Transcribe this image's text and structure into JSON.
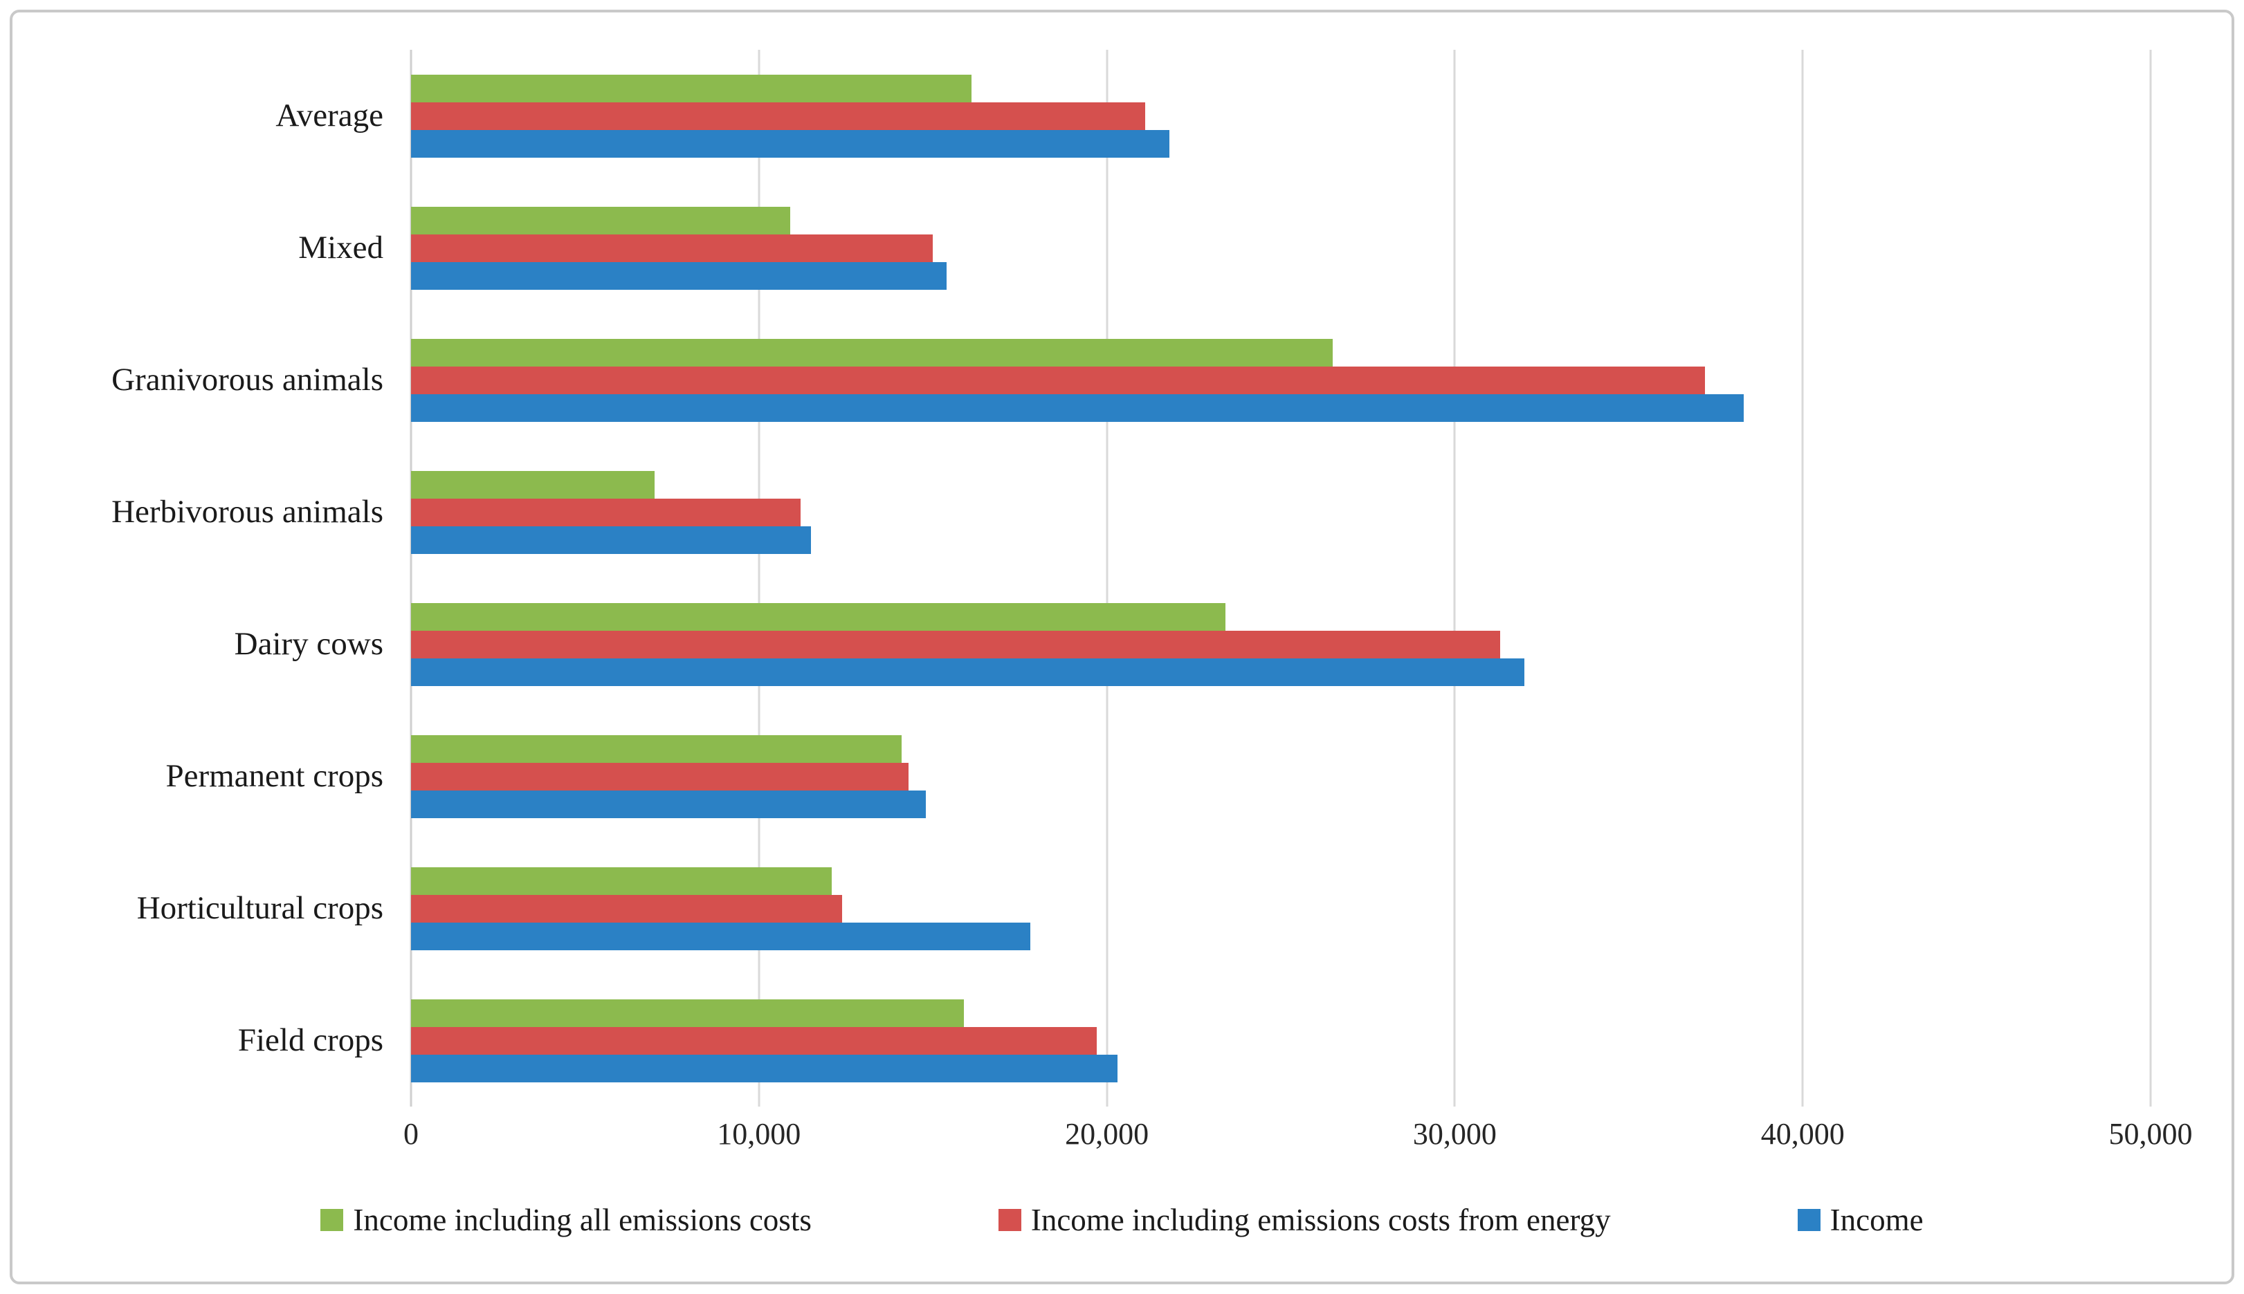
{
  "figure": {
    "background": "#ffffff",
    "frame_border_color": "#c9c9c9"
  },
  "chart_data": {
    "type": "bar",
    "orientation": "horizontal",
    "title": "",
    "xlabel": "",
    "ylabel": "",
    "categories_top_to_bottom": [
      "Average",
      "Mixed",
      "Granivorous animals",
      "Herbivorous animals",
      "Dairy cows",
      "Permanent crops",
      "Horticultural crops",
      "Field crops"
    ],
    "series": [
      {
        "name": "Income including all emissions costs",
        "color": "#8cba4e",
        "values": [
          16100,
          10900,
          26500,
          7000,
          23400,
          14100,
          12100,
          15900
        ]
      },
      {
        "name": "Income including emissions costs from energy",
        "color": "#d5504e",
        "values": [
          21100,
          15000,
          37200,
          11200,
          31300,
          14300,
          12400,
          19700
        ]
      },
      {
        "name": "Income",
        "color": "#2b81c5",
        "values": [
          21800,
          15400,
          38300,
          11500,
          32000,
          14800,
          17800,
          20300
        ]
      }
    ],
    "xlim": [
      0,
      50000
    ],
    "x_ticks": [
      {
        "value": 0,
        "label": "0"
      },
      {
        "value": 10000,
        "label": "10,000"
      },
      {
        "value": 20000,
        "label": "20,000"
      },
      {
        "value": 30000,
        "label": "30,000"
      },
      {
        "value": 40000,
        "label": "40,000"
      },
      {
        "value": 50000,
        "label": "50,000"
      }
    ],
    "grid": "vertical",
    "grid_color": "#d9d9d9",
    "axis_line_color": "#cfcfcf",
    "legend_position": "bottom"
  }
}
